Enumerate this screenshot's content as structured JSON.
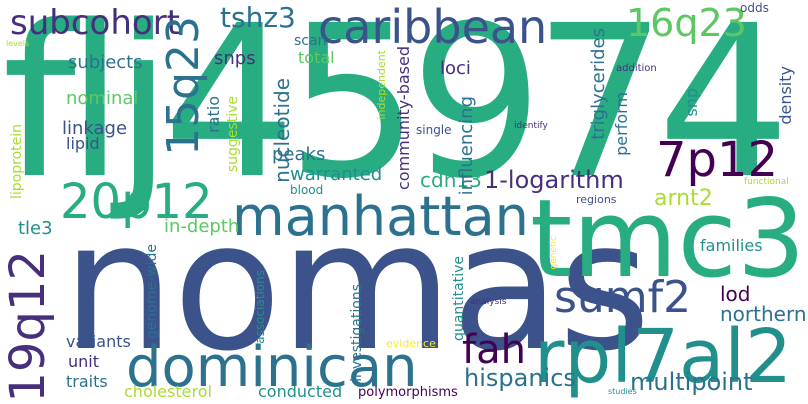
{
  "words": {
    "flj45974": "flj45974",
    "nomas": "nomas",
    "tmc3": "tmc3",
    "dominican": "dominican",
    "manhattan": "manhattan",
    "rpl7al2": "rpl7al2",
    "caribbean": "caribbean",
    "subcohort": "subcohort",
    "tshz3": "tshz3",
    "q16q23": "16q23",
    "q15q23": "15q23",
    "p20p12": "20p12",
    "p7p12": "7p12",
    "q19q12": "19q12",
    "sumf2": "sumf2",
    "fah": "fah",
    "hispanics": "hispanics",
    "multipoint": "multipoint",
    "arnt2": "arnt2",
    "cdh13": "cdh13",
    "logarithm": "1-logarithm",
    "subjects": "subjects",
    "nominal": "nominal",
    "linkage": "linkage",
    "lipid": "lipid",
    "tle3": "tle3",
    "in_depth": "in-depth",
    "peaks": "peaks",
    "warranted": "warranted",
    "snps": "snps",
    "scan": "scan",
    "total": "total",
    "loci": "loci",
    "lod": "lod",
    "northern": "northern",
    "families": "families",
    "regions": "regions",
    "blood": "blood",
    "variants": "variants",
    "unit": "unit",
    "traits": "traits",
    "cholesterol": "cholesterol",
    "conducted": "conducted",
    "polymorphisms": "polymorphisms",
    "evidence": "evidence",
    "analysis": "analysis",
    "studies": "studies",
    "single": "single",
    "identify": "identify",
    "addition": "addition",
    "odds": "odds",
    "levels": "levels",
    "functional": "functional",
    "lipoprotein": "lipoprotein",
    "ratio": "ratio",
    "suggestive": "suggestive",
    "genome_wide": "genome-wide",
    "nucleotide": "nucleotide",
    "community_based": "community-based",
    "influencing": "influencing",
    "independent": "independent",
    "triglycerides": "triglycerides",
    "perform": "perform",
    "snp": "snp",
    "density": "density",
    "associations": "associations",
    "investigations": "investigations",
    "quantitative": "quantitative",
    "genetic": "genetic"
  },
  "palette": {
    "dark_purple": "#440154",
    "indigo": "#472f7d",
    "blue": "#3b528b",
    "steel_blue": "#2c728e",
    "teal": "#21908d",
    "green_teal": "#27ad81",
    "green": "#5cc863",
    "lime": "#aadc32",
    "yellow": "#fde725"
  }
}
